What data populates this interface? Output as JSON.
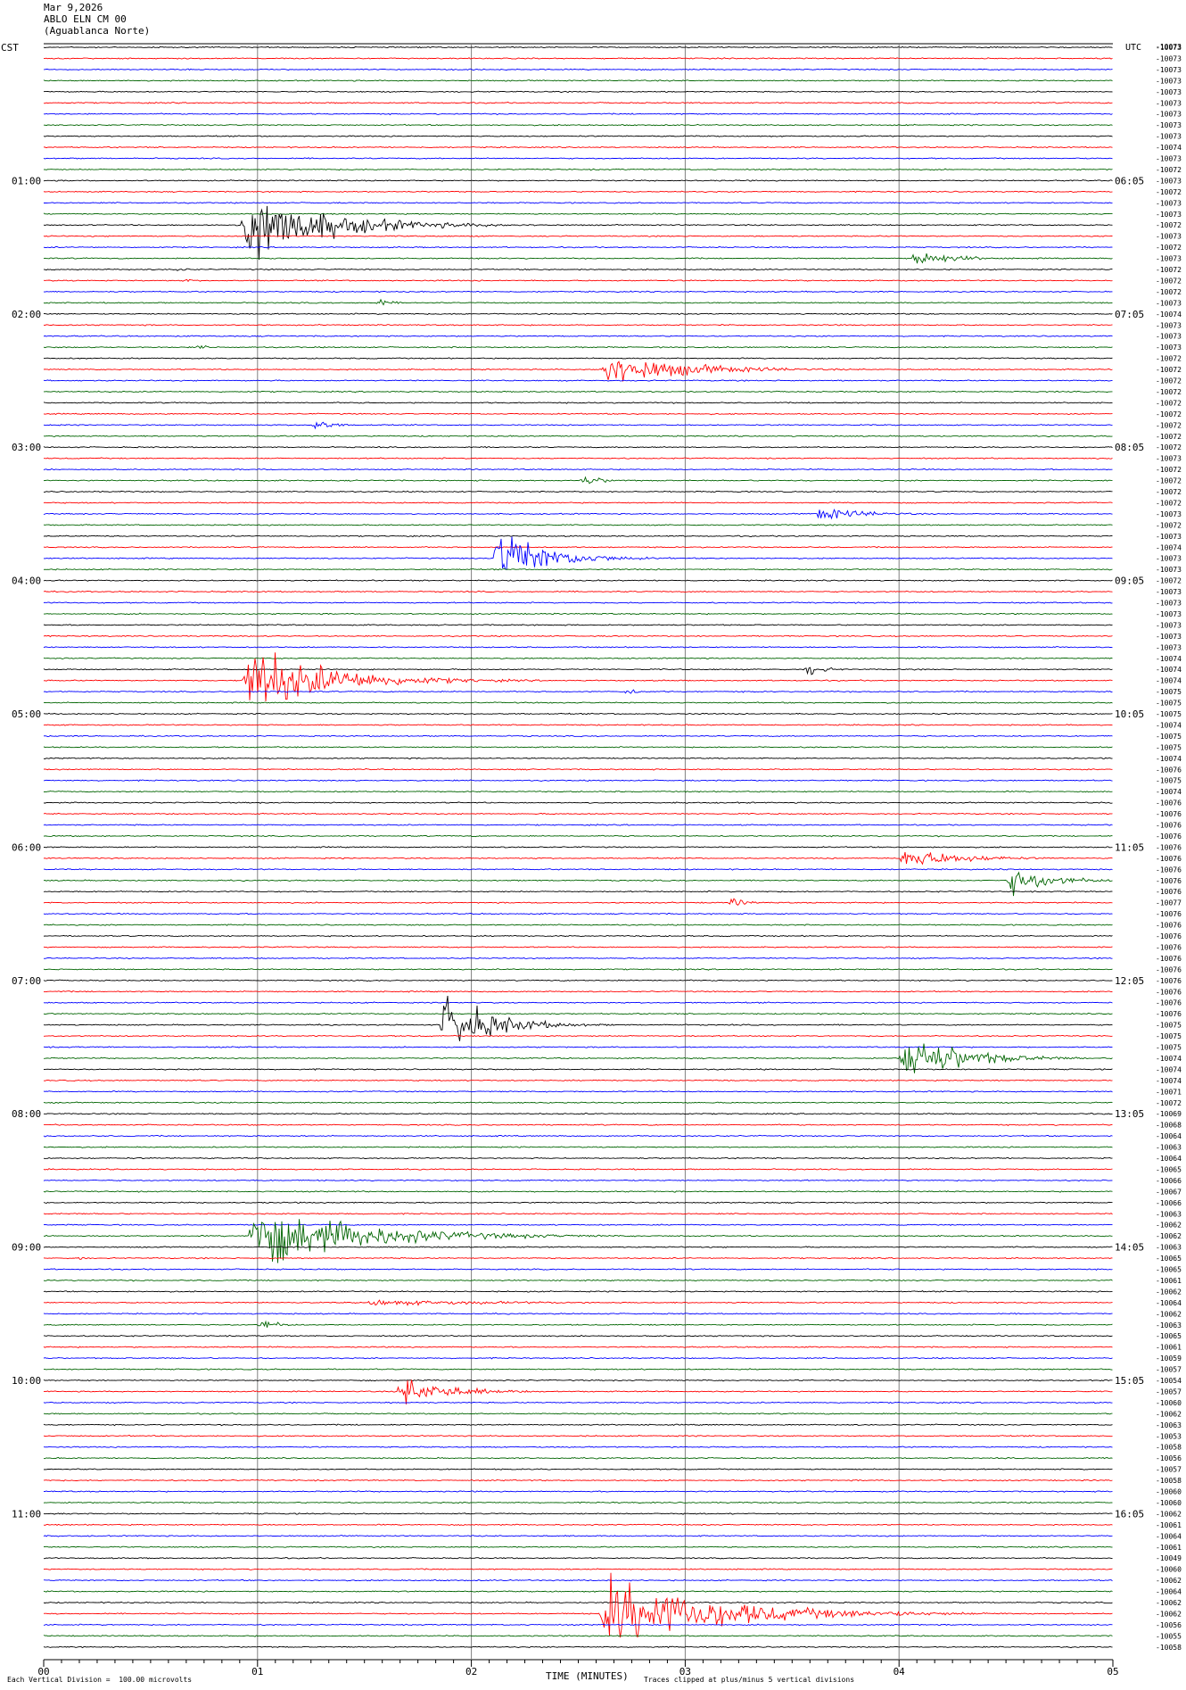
{
  "header": {
    "date": "Mar 9,2026",
    "station": "ABLO ELN CM 00",
    "site": "(Aguablanca Norte)"
  },
  "left_zone": "CST",
  "right_zone": "UTC",
  "right_top_label": "-10073",
  "footer": {
    "scale_note": "Each Vertical Division =  100.00 microvolts",
    "xlabel": "TIME (MINUTES)",
    "clip_note": "Traces clipped at plus/minus 5 vertical divisions"
  },
  "colors": {
    "trace_cycle": [
      "#000000",
      "#ff0000",
      "#0000ff",
      "#006400"
    ],
    "grid": "#808080"
  },
  "chart_data": {
    "type": "line",
    "title": "",
    "xlabel": "TIME (MINUTES)",
    "ylabel": "",
    "xlim": [
      0,
      5
    ],
    "x_ticks": [
      "00",
      "01",
      "02",
      "03",
      "04",
      "05"
    ],
    "left_time_labels": [
      "01:00",
      "02:00",
      "03:00",
      "04:00",
      "05:00",
      "06:00",
      "07:00",
      "08:00",
      "09:00",
      "10:00",
      "11:00"
    ],
    "right_time_labels": [
      "06:05",
      "07:05",
      "08:05",
      "09:05",
      "10:05",
      "11:05",
      "12:05",
      "13:05",
      "14:05",
      "15:05",
      "16:05"
    ],
    "trace_count": 145,
    "trace_minutes": 5,
    "trace_offsets": [
      "-10073",
      "-10073",
      "-10073",
      "-10073",
      "-10073",
      "-10073",
      "-10073",
      "-10073",
      "-10073",
      "-10074",
      "-10073",
      "-10072",
      "-10073",
      "-10072",
      "-10073",
      "-10073",
      "-10072",
      "-10073",
      "-10072",
      "-10073",
      "-10072",
      "-10072",
      "-10072",
      "-10073",
      "-10074",
      "-10073",
      "-10073",
      "-10073",
      "-10072",
      "-10072",
      "-10072",
      "-10072",
      "-10072",
      "-10072",
      "-10072",
      "-10072",
      "-10072",
      "-10073",
      "-10072",
      "-10072",
      "-10072",
      "-10072",
      "-10073",
      "-10072",
      "-10073",
      "-10074",
      "-10073",
      "-10073",
      "-10072",
      "-10073",
      "-10073",
      "-10073",
      "-10073",
      "-10073",
      "-10073",
      "-10074",
      "-10074",
      "-10074",
      "-10075",
      "-10075",
      "-10075",
      "-10074",
      "-10075",
      "-10075",
      "-10074",
      "-10076",
      "-10075",
      "-10074",
      "-10076",
      "-10076",
      "-10076",
      "-10076",
      "-10076",
      "-10076",
      "-10076",
      "-10076",
      "-10076",
      "-10077",
      "-10076",
      "-10076",
      "-10076",
      "-10076",
      "-10076",
      "-10076",
      "-10076",
      "-10076",
      "-10076",
      "-10076",
      "-10075",
      "-10075",
      "-10075",
      "-10074",
      "-10074",
      "-10074",
      "-10071",
      "-10072",
      "-10069",
      "-10068",
      "-10064",
      "-10063",
      "-10064",
      "-10065",
      "-10066",
      "-10067",
      "-10066",
      "-10063",
      "-10062",
      "-10062",
      "-10063",
      "-10065",
      "-10065",
      "-10061",
      "-10062",
      "-10064",
      "-10062",
      "-10063",
      "-10065",
      "-10061",
      "-10059",
      "-10057",
      "-10054",
      "-10057",
      "-10060",
      "-10062",
      "-10063",
      "-10053",
      "-10058",
      "-10056",
      "-10057",
      "-10058",
      "-10060",
      "-10060",
      "-10062",
      "-10061",
      "-10064",
      "-10061",
      "-10049",
      "-10060",
      "-10062",
      "-10064",
      "-10062",
      "-10062",
      "-10056",
      "-10055",
      "-10058"
    ],
    "events": [
      {
        "trace": 16,
        "start_min": 0.92,
        "duration_min": 1.0,
        "peak": 5.0
      },
      {
        "trace": 19,
        "start_min": 4.05,
        "duration_min": 0.5,
        "peak": 1.2
      },
      {
        "trace": 21,
        "start_min": 0.65,
        "duration_min": 0.1,
        "peak": 0.6
      },
      {
        "trace": 20,
        "start_min": 0.6,
        "duration_min": 0.15,
        "peak": 0.5
      },
      {
        "trace": 23,
        "start_min": 1.55,
        "duration_min": 0.15,
        "peak": 0.8
      },
      {
        "trace": 27,
        "start_min": 0.7,
        "duration_min": 0.15,
        "peak": 0.5
      },
      {
        "trace": 29,
        "start_min": 2.6,
        "duration_min": 1.0,
        "peak": 2.3
      },
      {
        "trace": 34,
        "start_min": 1.25,
        "duration_min": 0.2,
        "peak": 1.3
      },
      {
        "trace": 39,
        "start_min": 2.5,
        "duration_min": 0.3,
        "peak": 0.8
      },
      {
        "trace": 42,
        "start_min": 3.6,
        "duration_min": 0.6,
        "peak": 1.0
      },
      {
        "trace": 46,
        "start_min": 2.1,
        "duration_min": 0.6,
        "peak": 4.5
      },
      {
        "trace": 57,
        "start_min": 0.93,
        "duration_min": 1.0,
        "peak": 5.0
      },
      {
        "trace": 56,
        "start_min": 3.55,
        "duration_min": 0.2,
        "peak": 1.3
      },
      {
        "trace": 58,
        "start_min": 2.7,
        "duration_min": 0.2,
        "peak": 0.6
      },
      {
        "trace": 73,
        "start_min": 4.0,
        "duration_min": 0.7,
        "peak": 1.6
      },
      {
        "trace": 75,
        "start_min": 4.5,
        "duration_min": 0.5,
        "peak": 2.2
      },
      {
        "trace": 77,
        "start_min": 3.2,
        "duration_min": 0.2,
        "peak": 0.9
      },
      {
        "trace": 88,
        "start_min": 1.85,
        "duration_min": 0.6,
        "peak": 4.5
      },
      {
        "trace": 91,
        "start_min": 4.0,
        "duration_min": 0.7,
        "peak": 4.0
      },
      {
        "trace": 107,
        "start_min": 0.95,
        "duration_min": 1.3,
        "peak": 4.5
      },
      {
        "trace": 109,
        "start_min": 0.15,
        "duration_min": 0.1,
        "peak": 0.6
      },
      {
        "trace": 113,
        "start_min": 1.5,
        "duration_min": 2.0,
        "peak": 0.4
      },
      {
        "trace": 115,
        "start_min": 1.0,
        "duration_min": 0.2,
        "peak": 1.1
      },
      {
        "trace": 121,
        "start_min": 1.65,
        "duration_min": 0.6,
        "peak": 2.2
      },
      {
        "trace": 141,
        "start_min": 2.6,
        "duration_min": 1.4,
        "peak": 5.0
      }
    ]
  }
}
